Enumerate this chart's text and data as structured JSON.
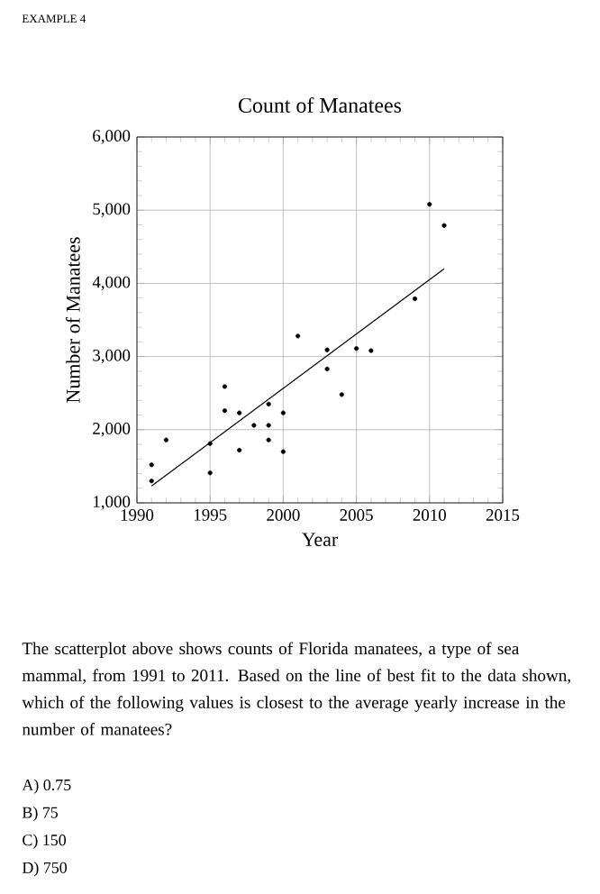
{
  "chart_data": {
    "type": "scatter",
    "title": "Count of Manatees",
    "xlabel": "Year",
    "ylabel": "Number of Manatees",
    "xlim": [
      1990,
      2015
    ],
    "xticks": [
      1990,
      1995,
      2000,
      2005,
      2010,
      2015
    ],
    "ylim": [
      1000,
      6000
    ],
    "yticks": [
      {
        "value": 1000,
        "label": "1,000"
      },
      {
        "value": 2000,
        "label": "2,000"
      },
      {
        "value": 3000,
        "label": "3,000"
      },
      {
        "value": 4000,
        "label": "4,000"
      },
      {
        "value": 5000,
        "label": "5,000"
      },
      {
        "value": 6000,
        "label": "6,000"
      }
    ],
    "grid": true,
    "series": [
      {
        "marker": "circle",
        "color": "#000000",
        "x": [
          1991,
          1991,
          1992,
          1995,
          1995,
          1996,
          1996,
          1997,
          1997,
          1998,
          1999,
          1999,
          1999,
          2000,
          2000,
          2001,
          2003,
          2003,
          2004,
          2005,
          2006,
          2009,
          2010,
          2011
        ],
        "values": [
          1520,
          1300,
          1860,
          1810,
          1410,
          2590,
          2260,
          2230,
          1720,
          2060,
          2350,
          2060,
          1860,
          2230,
          1700,
          3280,
          3090,
          2830,
          2480,
          3110,
          3080,
          3790,
          5080,
          4790
        ]
      },
      {
        "type": "line",
        "color": "#000000",
        "x": [
          1991,
          2011
        ],
        "values": [
          1230,
          4200
        ]
      }
    ],
    "annotations": [
      "EXAMPLE 4",
      "The scatterplot above shows counts of Florida manatees, a type of sea mammal, from 1991 to 2011. Based on the line of best fit to the data shown, which of the following values is closest to the average yearly increase in the number of manatees?",
      "A) 0.75",
      "B) 75",
      "C) 150",
      "D) 750"
    ]
  }
}
